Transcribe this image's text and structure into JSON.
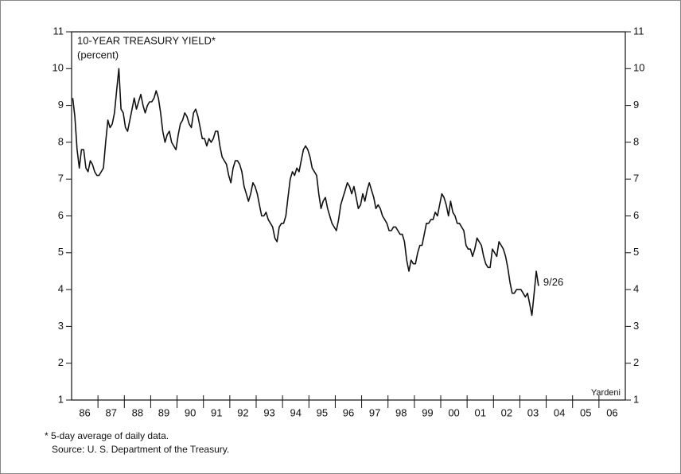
{
  "chart_data": {
    "type": "line",
    "title": "10-YEAR TREASURY YIELD*",
    "subtitle": "(percent)",
    "categories": [
      "86",
      "87",
      "88",
      "89",
      "90",
      "91",
      "92",
      "93",
      "94",
      "95",
      "96",
      "97",
      "98",
      "99",
      "00",
      "01",
      "02",
      "03",
      "04",
      "05",
      "06"
    ],
    "series": [
      {
        "name": "10-Year Treasury Yield",
        "color": "#111111",
        "values": [
          [
            9.2,
            8.7,
            7.8,
            7.3,
            7.8,
            7.8,
            7.3,
            7.2,
            7.5,
            7.4,
            7.2,
            7.1
          ],
          [
            7.1,
            7.2,
            7.3,
            8.0,
            8.6,
            8.4,
            8.5,
            8.8,
            9.4,
            10.0,
            8.9,
            8.8
          ],
          [
            8.4,
            8.3,
            8.6,
            8.9,
            9.2,
            8.9,
            9.1,
            9.3,
            9.0,
            8.8,
            9.0,
            9.1
          ],
          [
            9.1,
            9.2,
            9.4,
            9.2,
            8.8,
            8.3,
            8.0,
            8.2,
            8.3,
            8.0,
            7.9,
            7.8
          ],
          [
            8.2,
            8.5,
            8.6,
            8.8,
            8.7,
            8.5,
            8.4,
            8.8,
            8.9,
            8.7,
            8.4,
            8.1
          ],
          [
            8.1,
            7.9,
            8.1,
            8.0,
            8.1,
            8.3,
            8.3,
            7.9,
            7.6,
            7.5,
            7.4,
            7.1
          ],
          [
            6.9,
            7.3,
            7.5,
            7.5,
            7.4,
            7.2,
            6.8,
            6.6,
            6.4,
            6.6,
            6.9,
            6.8
          ],
          [
            6.6,
            6.3,
            6.0,
            6.0,
            6.1,
            5.9,
            5.8,
            5.7,
            5.4,
            5.3,
            5.7,
            5.8
          ],
          [
            5.8,
            6.0,
            6.5,
            7.0,
            7.2,
            7.1,
            7.3,
            7.2,
            7.5,
            7.8,
            7.9,
            7.8
          ],
          [
            7.6,
            7.3,
            7.2,
            7.1,
            6.6,
            6.2,
            6.4,
            6.5,
            6.2,
            6.0,
            5.8,
            5.7
          ],
          [
            5.6,
            5.9,
            6.3,
            6.5,
            6.7,
            6.9,
            6.8,
            6.6,
            6.8,
            6.5,
            6.2,
            6.3
          ],
          [
            6.6,
            6.4,
            6.7,
            6.9,
            6.7,
            6.5,
            6.2,
            6.3,
            6.2,
            6.0,
            5.9,
            5.8
          ],
          [
            5.6,
            5.6,
            5.7,
            5.7,
            5.6,
            5.5,
            5.5,
            5.3,
            4.8,
            4.5,
            4.8,
            4.7
          ],
          [
            4.7,
            5.0,
            5.2,
            5.2,
            5.5,
            5.8,
            5.8,
            5.9,
            5.9,
            6.1,
            6.0,
            6.3
          ],
          [
            6.6,
            6.5,
            6.3,
            6.0,
            6.4,
            6.1,
            6.0,
            5.8,
            5.8,
            5.7,
            5.6,
            5.2
          ],
          [
            5.1,
            5.1,
            4.9,
            5.1,
            5.4,
            5.3,
            5.2,
            4.9,
            4.7,
            4.6,
            4.6,
            5.1
          ],
          [
            5.0,
            4.9,
            5.3,
            5.2,
            5.1,
            4.9,
            4.6,
            4.2,
            3.9,
            3.9,
            4.0,
            4.0
          ],
          [
            4.0,
            3.9,
            3.8,
            3.9,
            3.6,
            3.3,
            3.9,
            4.5,
            4.1
          ],
          [],
          [],
          []
        ]
      }
    ],
    "end_label": "9/26",
    "source_tag": "Yardeni",
    "ylim": [
      1,
      11
    ],
    "yticks": [
      1,
      2,
      3,
      4,
      5,
      6,
      7,
      8,
      9,
      10,
      11
    ],
    "footnotes": [
      "*  5-day average of daily data.",
      "Source: U. S. Department of the Treasury."
    ]
  }
}
